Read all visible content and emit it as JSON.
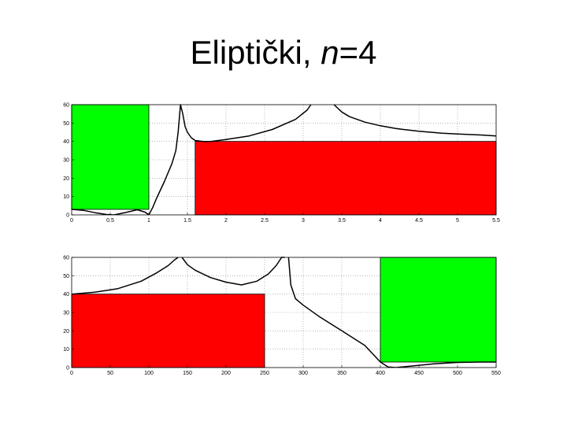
{
  "slide": {
    "title_prefix": "Eliptički, ",
    "title_var": "n",
    "title_suffix": "=4"
  },
  "colors": {
    "passband": "#00ff00",
    "stopband": "#ff0000",
    "curve": "#000000",
    "grid": "#8a8a8a"
  },
  "chart_data": [
    {
      "type": "line",
      "title": "",
      "xlabel": "",
      "ylabel": "",
      "xlim": [
        0,
        5.5
      ],
      "ylim": [
        0,
        60
      ],
      "xticks": [
        "0",
        "0.5",
        "1",
        "1.5",
        "2",
        "2.5",
        "3",
        "3.5",
        "4",
        "4.5",
        "5",
        "5.5"
      ],
      "xtick_values": [
        0,
        0.5,
        1,
        1.5,
        2,
        2.5,
        3,
        3.5,
        4,
        4.5,
        5,
        5.5
      ],
      "yticks": [
        "0",
        "10",
        "20",
        "30",
        "40",
        "50",
        "60"
      ],
      "ytick_values": [
        0,
        10,
        20,
        30,
        40,
        50,
        60
      ],
      "grid": true,
      "regions": [
        {
          "kind": "passband",
          "x": [
            0,
            1
          ],
          "y": [
            3,
            60
          ]
        },
        {
          "kind": "stopband",
          "x": [
            1.6,
            5.5
          ],
          "y": [
            0,
            40
          ]
        }
      ],
      "series": [
        {
          "x": [
            0,
            0.15,
            0.3,
            0.45,
            0.55,
            0.7,
            0.85,
            0.95,
            1.0,
            1.05,
            1.1,
            1.2,
            1.3,
            1.35,
            1.38,
            1.41,
            1.44,
            1.47,
            1.5,
            1.55,
            1.6,
            1.7,
            1.8,
            2.0,
            2.3,
            2.6,
            2.9,
            3.05,
            3.1
          ],
          "y": [
            3,
            2.5,
            1.2,
            0.2,
            0,
            1.3,
            2.8,
            1.5,
            0,
            4,
            9,
            18,
            28,
            35,
            45,
            60,
            55,
            48,
            45,
            42,
            40.5,
            40,
            40,
            41,
            43,
            46.5,
            52,
            57,
            60
          ]
        },
        {
          "x": [
            3.4,
            3.5,
            3.6,
            3.8,
            4.0,
            4.2,
            4.5,
            4.8,
            5.0,
            5.3,
            5.5
          ],
          "y": [
            60,
            56,
            53.5,
            50.5,
            48.5,
            47,
            45.5,
            44.5,
            44,
            43.5,
            43
          ]
        }
      ]
    },
    {
      "type": "line",
      "title": "",
      "xlabel": "",
      "ylabel": "",
      "xlim": [
        0,
        550
      ],
      "ylim": [
        0,
        60
      ],
      "xticks": [
        "0",
        "50",
        "100",
        "150",
        "200",
        "250",
        "300",
        "350",
        "400",
        "450",
        "500",
        "550"
      ],
      "xtick_values": [
        0,
        50,
        100,
        150,
        200,
        250,
        300,
        350,
        400,
        450,
        500,
        550
      ],
      "yticks": [
        "0",
        "10",
        "20",
        "30",
        "40",
        "50",
        "60"
      ],
      "ytick_values": [
        0,
        10,
        20,
        30,
        40,
        50,
        60
      ],
      "grid": true,
      "regions": [
        {
          "kind": "stopband",
          "x": [
            0,
            250
          ],
          "y": [
            0,
            40
          ]
        },
        {
          "kind": "passband",
          "x": [
            400,
            550
          ],
          "y": [
            3,
            60
          ]
        }
      ],
      "series": [
        {
          "x": [
            0,
            30,
            60,
            90,
            110,
            125,
            133,
            138
          ],
          "y": [
            40,
            41,
            43,
            47,
            51.5,
            55.5,
            58.5,
            60
          ]
        },
        {
          "x": [
            143,
            150,
            160,
            180,
            200,
            220,
            240,
            255,
            265,
            272,
            276
          ],
          "y": [
            60,
            56,
            53,
            49,
            46.5,
            45,
            47,
            51,
            55.5,
            60,
            60
          ]
        },
        {
          "x": [
            281,
            284,
            290,
            300,
            320,
            350,
            380,
            400,
            410,
            420,
            440,
            470,
            500,
            530,
            550
          ],
          "y": [
            60,
            45,
            37.5,
            34,
            28,
            20,
            12,
            3,
            0.3,
            0,
            0.8,
            2,
            2.8,
            3,
            3
          ]
        }
      ]
    }
  ]
}
